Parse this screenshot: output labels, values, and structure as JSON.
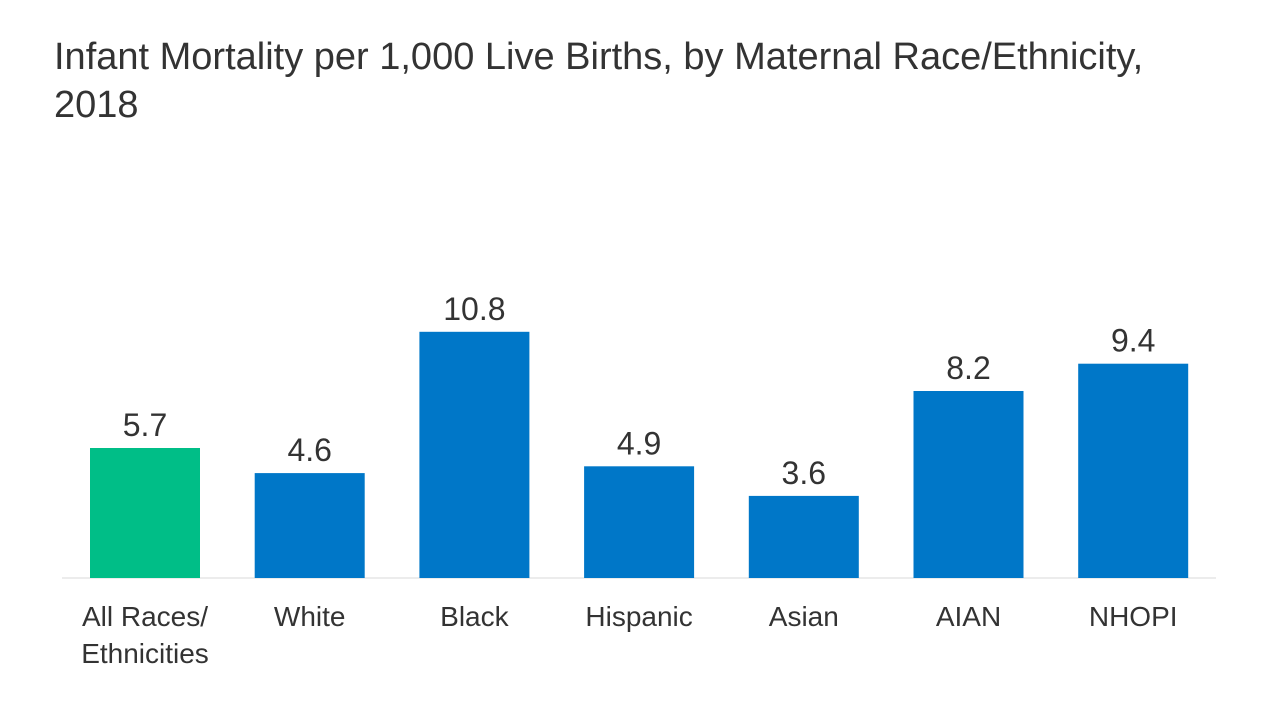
{
  "chart_data": {
    "type": "bar",
    "title": "Infant Mortality per 1,000 Live Births, by Maternal Race/Ethnicity, 2018",
    "categories": [
      "All Races/\nEthnicities",
      "White",
      "Black",
      "Hispanic",
      "Asian",
      "AIAN",
      "NHOPI"
    ],
    "values": [
      5.7,
      4.6,
      10.8,
      4.9,
      3.6,
      8.2,
      9.4
    ],
    "value_labels": [
      "5.7",
      "4.6",
      "10.8",
      "4.9",
      "3.6",
      "8.2",
      "9.4"
    ],
    "bar_colors": [
      "#00be87",
      "#0077c8",
      "#0077c8",
      "#0077c8",
      "#0077c8",
      "#0077c8",
      "#0077c8"
    ],
    "axis_color": "#d9d9d9",
    "ylim": [
      0,
      12
    ],
    "grid": false,
    "legend": "none"
  }
}
